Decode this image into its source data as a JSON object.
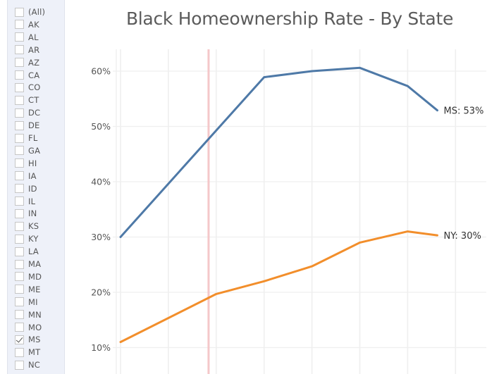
{
  "filter": {
    "items": [
      {
        "label": "(All)",
        "checked": false
      },
      {
        "label": "AK",
        "checked": false
      },
      {
        "label": "AL",
        "checked": false
      },
      {
        "label": "AR",
        "checked": false
      },
      {
        "label": "AZ",
        "checked": false
      },
      {
        "label": "CA",
        "checked": false
      },
      {
        "label": "CO",
        "checked": false
      },
      {
        "label": "CT",
        "checked": false
      },
      {
        "label": "DC",
        "checked": false
      },
      {
        "label": "DE",
        "checked": false
      },
      {
        "label": "FL",
        "checked": false
      },
      {
        "label": "GA",
        "checked": false
      },
      {
        "label": "HI",
        "checked": false
      },
      {
        "label": "IA",
        "checked": false
      },
      {
        "label": "ID",
        "checked": false
      },
      {
        "label": "IL",
        "checked": false
      },
      {
        "label": "IN",
        "checked": false
      },
      {
        "label": "KS",
        "checked": false
      },
      {
        "label": "KY",
        "checked": false
      },
      {
        "label": "LA",
        "checked": false
      },
      {
        "label": "MA",
        "checked": false
      },
      {
        "label": "MD",
        "checked": false
      },
      {
        "label": "ME",
        "checked": false
      },
      {
        "label": "MI",
        "checked": false
      },
      {
        "label": "MN",
        "checked": false
      },
      {
        "label": "MO",
        "checked": false
      },
      {
        "label": "MS",
        "checked": true
      },
      {
        "label": "MT",
        "checked": false
      },
      {
        "label": "NC",
        "checked": false
      }
    ]
  },
  "colors": {
    "ms": "#4e79a7",
    "ny": "#f28e2b",
    "reference_line": "#f4c7c9",
    "grid": "#efefef",
    "sidebar_bg": "#eef1f9"
  },
  "chart_data": {
    "type": "line",
    "title": "Black Homeownership Rate - By State",
    "xlabel": "",
    "ylabel": "",
    "ylim": [
      8,
      64
    ],
    "yticks": [
      "10%",
      "20%",
      "30%",
      "40%",
      "50%",
      "60%"
    ],
    "x": [
      0,
      2,
      3,
      4,
      5,
      6,
      6.62
    ],
    "series": [
      {
        "name": "MS",
        "values": [
          30.0,
          null,
          58.9,
          60.0,
          60.6,
          57.3,
          52.9
        ],
        "end_label": "MS: 53%",
        "points": [
          [
            0,
            30.0
          ],
          [
            3,
            58.9
          ],
          [
            4,
            60.0
          ],
          [
            5,
            60.6
          ],
          [
            6,
            57.3
          ],
          [
            6.62,
            52.9
          ]
        ]
      },
      {
        "name": "NY",
        "values": [
          11.0,
          19.7,
          22.0,
          24.7,
          29.0,
          31.0,
          30.3
        ],
        "end_label": "NY: 30%",
        "points": [
          [
            0,
            11.0
          ],
          [
            2,
            19.7
          ],
          [
            3,
            22.0
          ],
          [
            4,
            24.7
          ],
          [
            5,
            29.0
          ],
          [
            6,
            31.0
          ],
          [
            6.62,
            30.3
          ]
        ]
      }
    ],
    "reference_line_x": 1.84,
    "grid": true,
    "legend": "inline end labels"
  }
}
